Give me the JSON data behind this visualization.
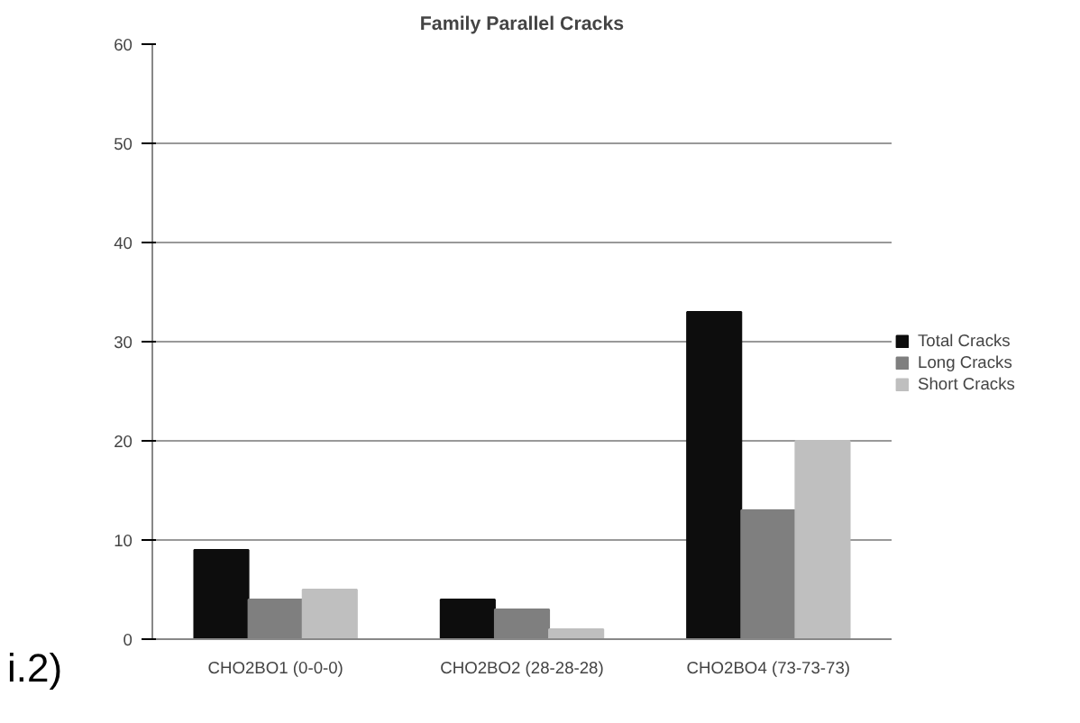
{
  "chart_data": {
    "type": "bar",
    "title": "Family Parallel Cracks",
    "categories": [
      "CHO2BO1 (0-0-0)",
      "CHO2BO2 (28-28-28)",
      "CHO2BO4 (73-73-73)"
    ],
    "series": [
      {
        "name": "Total Cracks",
        "color": "#0d0d0d",
        "values": [
          9,
          4,
          33
        ]
      },
      {
        "name": "Long Cracks",
        "color": "#7f7f7f",
        "values": [
          4,
          3,
          13
        ]
      },
      {
        "name": "Short Cracks",
        "color": "#bfbfbf",
        "values": [
          5,
          1,
          20
        ]
      }
    ],
    "ylim": [
      0,
      60
    ],
    "yticks": [
      0,
      10,
      20,
      30,
      40,
      50,
      60
    ],
    "grid": "y",
    "legend": "right",
    "annotations": [
      "i.2)"
    ]
  }
}
